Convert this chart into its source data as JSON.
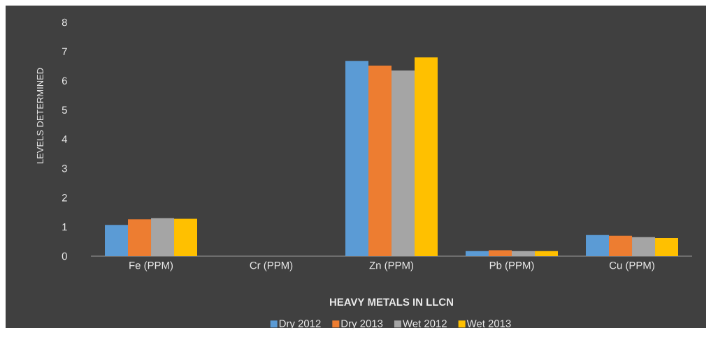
{
  "chart_data": {
    "type": "bar",
    "xlabel": "HEAVY METALS IN LLCN",
    "ylabel": "LEVELS DETERMINED",
    "categories": [
      "Fe (PPM)",
      "Cr (PPM)",
      "Zn (PPM)",
      "Pb (PPM)",
      "Cu (PPM)"
    ],
    "series": [
      {
        "name": "Dry 2012",
        "color": "#5b9bd5",
        "values": [
          1.07,
          null,
          6.68,
          0.17,
          0.72
        ]
      },
      {
        "name": "Dry 2013",
        "color": "#ed7d31",
        "values": [
          1.26,
          null,
          6.52,
          0.2,
          0.7
        ]
      },
      {
        "name": "Wet 2012",
        "color": "#a5a5a5",
        "values": [
          1.3,
          null,
          6.35,
          0.17,
          0.65
        ]
      },
      {
        "name": "Wet 2013",
        "color": "#ffc000",
        "values": [
          1.28,
          null,
          6.8,
          0.17,
          0.62
        ]
      }
    ],
    "ylim": [
      0,
      8
    ],
    "yticks": [
      0,
      1,
      2,
      3,
      4,
      5,
      6,
      7,
      8
    ],
    "legend": "bottom"
  }
}
